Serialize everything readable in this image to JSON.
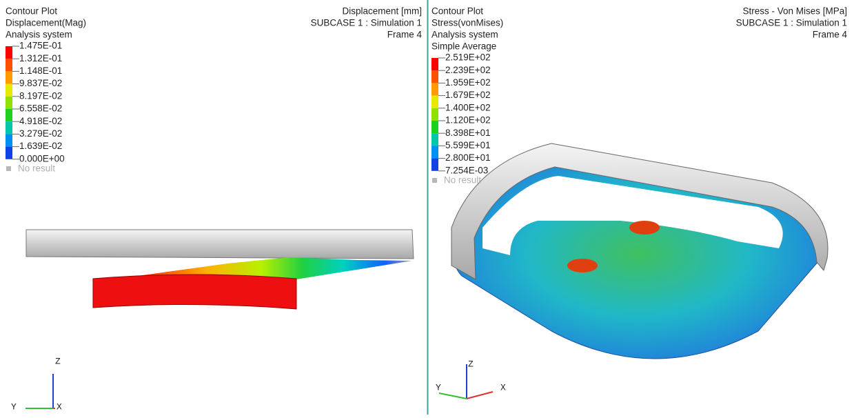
{
  "left_view": {
    "header": [
      "Contour Plot",
      "Displacement(Mag)",
      "Analysis system"
    ],
    "legend": [
      "1.475E-01",
      "1.312E-01",
      "1.148E-01",
      "9.837E-02",
      "8.197E-02",
      "6.558E-02",
      "4.918E-02",
      "3.279E-02",
      "1.639E-02",
      "0.000E+00"
    ],
    "no_result": "No result",
    "info": [
      "Displacement [mm]",
      "SUBCASE 1 : Simulation 1",
      "Frame 4"
    ],
    "axes": {
      "z": "Z",
      "y": "Y",
      "x": "X"
    }
  },
  "right_view": {
    "header": [
      "Contour Plot",
      "Stress(vonMises)",
      "Analysis system",
      "Simple Average"
    ],
    "legend": [
      "2.519E+02",
      "2.239E+02",
      "1.959E+02",
      "1.679E+02",
      "1.400E+02",
      "1.120E+02",
      "8.398E+01",
      "5.599E+01",
      "2.800E+01",
      "7.254E-03"
    ],
    "no_result": "No result",
    "info": [
      "Stress - Von Mises [MPa]",
      "SUBCASE 1 : Simulation 1",
      "Frame 4"
    ],
    "axes": {
      "z": "Z",
      "y": "Y",
      "x": "X"
    }
  }
}
